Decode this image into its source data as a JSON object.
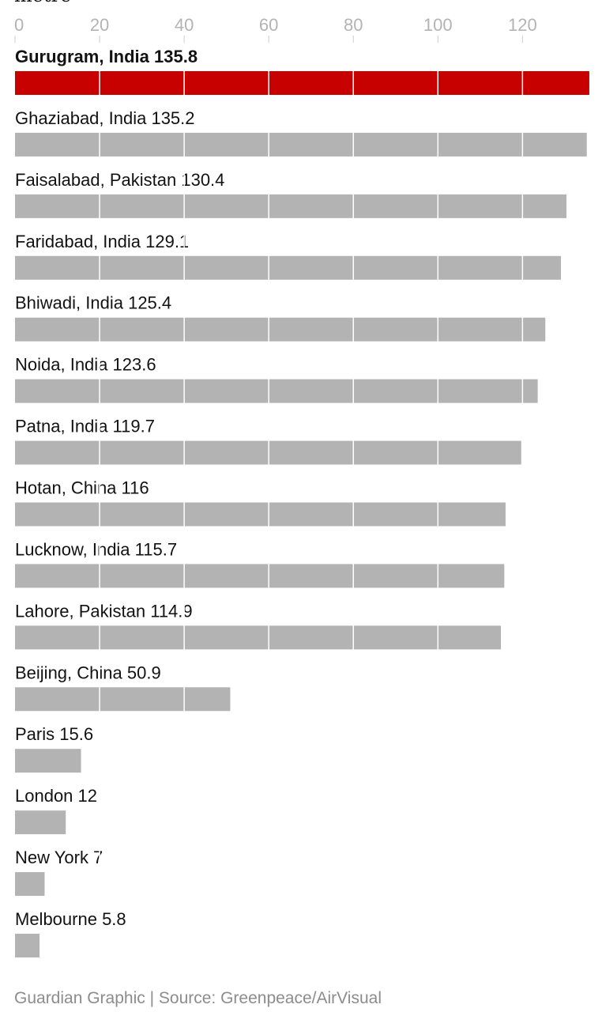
{
  "chart_data": {
    "type": "bar",
    "orientation": "horizontal",
    "unit_label_fragment": "metre",
    "xlim": [
      0,
      136
    ],
    "xticks": [
      0,
      20,
      40,
      60,
      80,
      100,
      120
    ],
    "grid": true,
    "highlight_color": "#c70000",
    "bar_color": "#b3b3b3",
    "categories": [
      "Gurugram, India",
      "Ghaziabad, India",
      "Faisalabad, Pakistan",
      "Faridabad, India",
      "Bhiwadi, India",
      "Noida, India",
      "Patna, India",
      "Hotan, China",
      "Lucknow, India",
      "Lahore, Pakistan",
      "Beijing, China",
      "Paris",
      "London",
      "New York",
      "Melbourne"
    ],
    "values": [
      135.8,
      135.2,
      130.4,
      129.1,
      125.4,
      123.6,
      119.7,
      116,
      115.7,
      114.9,
      50.9,
      15.6,
      12,
      7,
      5.8
    ],
    "value_labels": [
      "135.8",
      "135.2",
      "130.4",
      "129.1",
      "125.4",
      "123.6",
      "119.7",
      "116",
      "115.7",
      "114.9",
      "50.9",
      "15.6",
      "12",
      "7",
      "5.8"
    ],
    "highlighted": [
      true,
      false,
      false,
      false,
      false,
      false,
      false,
      false,
      false,
      false,
      false,
      false,
      false,
      false,
      false
    ]
  },
  "footer": {
    "source": "Guardian Graphic | Source: Greenpeace/AirVisual"
  }
}
